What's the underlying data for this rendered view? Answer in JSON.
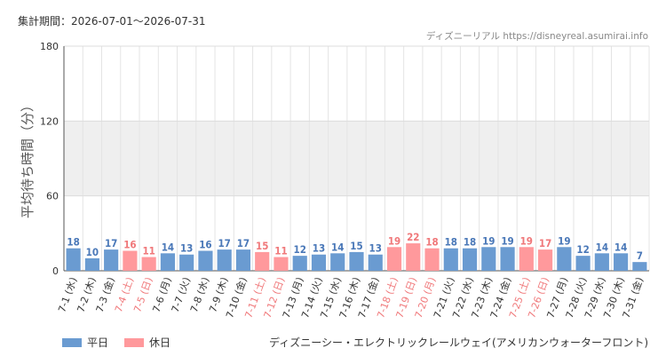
{
  "header": {
    "period": "集計期間：2026-07-01～2026-07-31",
    "source": "ディズニーリアル https://disneyreal.asumirai.info"
  },
  "legend": {
    "weekday": "平日",
    "holiday": "休日"
  },
  "attraction": "ディズニーシー・エレクトリックレールウェイ(アメリカンウォーターフロント)",
  "colors": {
    "weekday": "#6a9bd1",
    "holiday": "#ff999c",
    "weekday_text": "#4a78b8",
    "holiday_text": "#f0787a",
    "band": "#efefef"
  },
  "chart_data": {
    "type": "bar",
    "ylabel": "平均待ち時間（分）",
    "ylim": [
      0,
      180
    ],
    "yticks": [
      0,
      60,
      120,
      180
    ],
    "shaded_band": [
      60,
      120
    ],
    "grid": true,
    "categories": [
      "7-1 (水)",
      "7-2 (木)",
      "7-3 (金)",
      "7-4 (土)",
      "7-5 (日)",
      "7-6 (月)",
      "7-7 (火)",
      "7-8 (水)",
      "7-9 (木)",
      "7-10 (金)",
      "7-11 (土)",
      "7-12 (日)",
      "7-13 (月)",
      "7-14 (火)",
      "7-15 (水)",
      "7-16 (木)",
      "7-17 (金)",
      "7-18 (土)",
      "7-19 (日)",
      "7-20 (月)",
      "7-21 (火)",
      "7-22 (水)",
      "7-23 (木)",
      "7-24 (金)",
      "7-25 (土)",
      "7-26 (日)",
      "7-27 (月)",
      "7-28 (火)",
      "7-29 (水)",
      "7-30 (木)",
      "7-31 (金)"
    ],
    "values": [
      18,
      10,
      17,
      16,
      11,
      14,
      13,
      16,
      17,
      17,
      15,
      11,
      12,
      13,
      14,
      15,
      13,
      19,
      22,
      18,
      18,
      18,
      19,
      19,
      19,
      17,
      19,
      12,
      14,
      14,
      7
    ],
    "holiday": [
      false,
      false,
      false,
      true,
      true,
      false,
      false,
      false,
      false,
      false,
      true,
      true,
      false,
      false,
      false,
      false,
      false,
      true,
      true,
      true,
      false,
      false,
      false,
      false,
      true,
      true,
      false,
      false,
      false,
      false,
      false
    ]
  }
}
